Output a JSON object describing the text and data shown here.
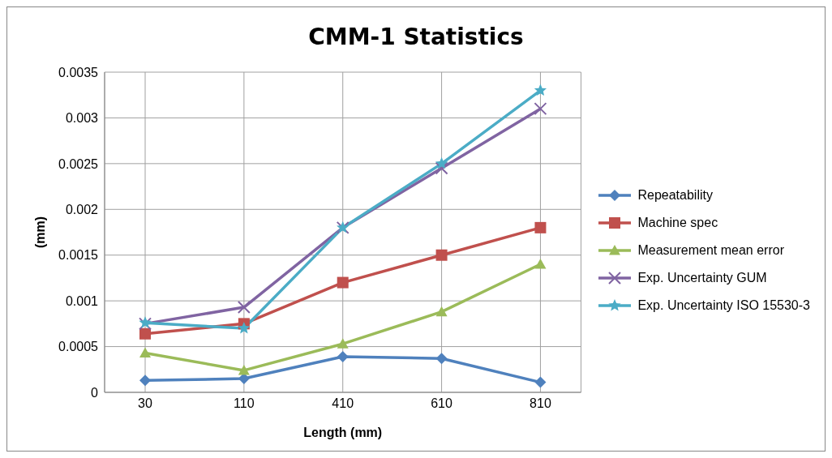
{
  "chart_data": {
    "type": "line",
    "title": "CMM-1 Statistics",
    "xlabel": "Length (mm)",
    "ylabel": "(mm)",
    "categories": [
      "30",
      "110",
      "410",
      "610",
      "810"
    ],
    "series": [
      {
        "name": "Repeatability",
        "color": "#4f81bd",
        "marker": "diamond",
        "values": [
          0.00013,
          0.00015,
          0.00039,
          0.00037,
          0.00011
        ]
      },
      {
        "name": "Machine spec",
        "color": "#c0504d",
        "marker": "square",
        "values": [
          0.00064,
          0.00075,
          0.0012,
          0.0015,
          0.0018
        ]
      },
      {
        "name": "Measurement mean error",
        "color": "#9bbb59",
        "marker": "triangle",
        "values": [
          0.00043,
          0.00024,
          0.00053,
          0.00088,
          0.0014
        ]
      },
      {
        "name": "Exp. Uncertainty GUM",
        "color": "#8064a2",
        "marker": "cross",
        "values": [
          0.00075,
          0.00093,
          0.0018,
          0.00245,
          0.0031
        ]
      },
      {
        "name": "Exp. Uncertainty ISO 15530-3",
        "color": "#4bacc6",
        "marker": "star",
        "values": [
          0.00076,
          0.0007,
          0.0018,
          0.0025,
          0.0033
        ]
      }
    ],
    "ylim": [
      0,
      0.0035
    ],
    "yticks": [
      0,
      0.0005,
      0.001,
      0.0015,
      0.002,
      0.0025,
      0.003,
      0.0035
    ],
    "grid": true,
    "legend": "right",
    "line_style": "solid"
  }
}
